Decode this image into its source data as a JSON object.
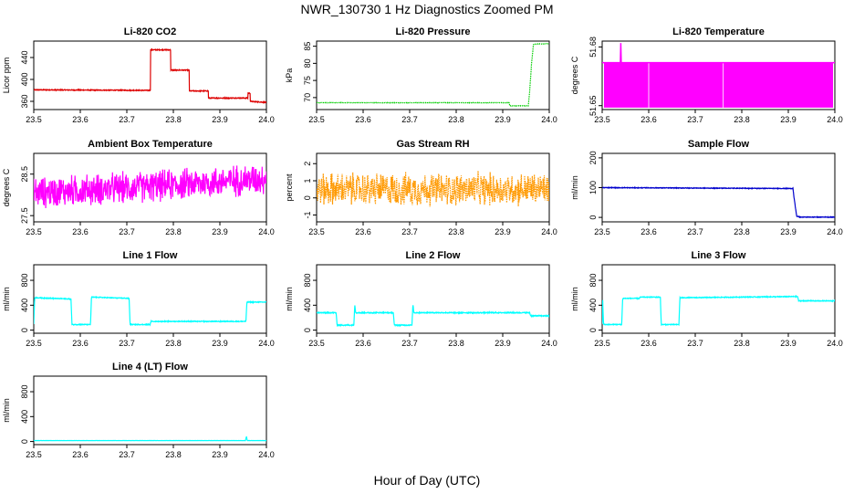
{
  "figure": {
    "title": "NWR_130730  1 Hz Diagnostics Zoomed PM",
    "xlabel": "Hour of Day (UTC)"
  },
  "chart_data": [
    {
      "type": "line",
      "title": "Li-820 CO2",
      "ylabel": "Licor ppm",
      "color": "#dd0000",
      "xlim": [
        23.5,
        24.0
      ],
      "ylim": [
        345,
        470
      ],
      "xticks": [
        23.5,
        23.6,
        23.7,
        23.8,
        23.9,
        24.0
      ],
      "xtick_labels": [
        "23.5",
        "23.6",
        "23.7",
        "23.8",
        "23.9",
        "24.0"
      ],
      "yticks": [
        360,
        400,
        440
      ],
      "ytick_labels": [
        "360",
        "400",
        "440"
      ],
      "style": "steps",
      "noise": 1.5,
      "series": [
        {
          "x": [
            23.5,
            23.751,
            23.751,
            23.794,
            23.794,
            23.834,
            23.834,
            23.875,
            23.875,
            23.96,
            23.96,
            23.965,
            23.965,
            24.0
          ],
          "y": [
            381,
            380,
            454,
            454,
            417,
            417,
            379,
            379,
            366,
            366,
            375,
            375,
            360,
            358
          ]
        }
      ]
    },
    {
      "type": "line",
      "title": "Li-820 Pressure",
      "ylabel": "kPa",
      "color": "#00cc00",
      "xlim": [
        23.5,
        24.0
      ],
      "ylim": [
        66.5,
        86.5
      ],
      "xticks": [
        23.5,
        23.6,
        23.7,
        23.8,
        23.9,
        24.0
      ],
      "xtick_labels": [
        "23.5",
        "23.6",
        "23.7",
        "23.8",
        "23.9",
        "24.0"
      ],
      "yticks": [
        70,
        75,
        80,
        85
      ],
      "ytick_labels": [
        "70",
        "75",
        "80",
        "85"
      ],
      "style": "dotted",
      "noise": 0.1,
      "series": [
        {
          "x": [
            23.5,
            23.914,
            23.915,
            23.955,
            23.958,
            23.962,
            23.966,
            23.975,
            24.0
          ],
          "y": [
            68.5,
            68.5,
            67.6,
            67.6,
            72,
            80,
            85.5,
            85.7,
            85.7
          ]
        }
      ]
    },
    {
      "type": "line",
      "title": "Li-820 Temperature",
      "ylabel": "degrees C",
      "color": "#ff00ff",
      "xlim": [
        23.5,
        24.0
      ],
      "ylim": [
        51.648,
        51.683
      ],
      "xticks": [
        23.5,
        23.6,
        23.7,
        23.8,
        23.9,
        24.0
      ],
      "xtick_labels": [
        "23.5",
        "23.6",
        "23.7",
        "23.8",
        "23.9",
        "24.0"
      ],
      "yticks": [
        51.65,
        51.68
      ],
      "ytick_labels": [
        "51.65",
        "51.68"
      ],
      "style": "band",
      "band": [
        51.649,
        51.672
      ],
      "series": [
        {
          "x": [
            23.5,
            23.539,
            23.54,
            23.541,
            24.0
          ],
          "y": [
            51.672,
            51.672,
            51.682,
            51.672,
            51.672
          ]
        }
      ]
    },
    {
      "type": "line",
      "title": "Ambient Box Temperature",
      "ylabel": "degrees C",
      "color": "#ff00ff",
      "xlim": [
        23.5,
        24.0
      ],
      "ylim": [
        27.35,
        29.0
      ],
      "xticks": [
        23.5,
        23.6,
        23.7,
        23.8,
        23.9,
        24.0
      ],
      "xtick_labels": [
        "23.5",
        "23.6",
        "23.7",
        "23.8",
        "23.9",
        "24.0"
      ],
      "yticks": [
        27.5,
        28.5
      ],
      "ytick_labels": [
        "27.5",
        "28.5"
      ],
      "style": "noisy",
      "noise": 0.55,
      "series": [
        {
          "x": [
            23.5,
            23.75,
            24.0
          ],
          "y": [
            28.05,
            28.2,
            28.4
          ]
        }
      ]
    },
    {
      "type": "line",
      "title": "Gas Stream RH",
      "ylabel": "percent",
      "color": "#ff9900",
      "xlim": [
        23.5,
        24.0
      ],
      "ylim": [
        -1.4,
        2.6
      ],
      "xticks": [
        23.5,
        23.6,
        23.7,
        23.8,
        23.9,
        24.0
      ],
      "xtick_labels": [
        "23.5",
        "23.6",
        "23.7",
        "23.8",
        "23.9",
        "24.0"
      ],
      "yticks": [
        -1,
        0,
        1,
        2
      ],
      "ytick_labels": [
        "-1",
        "0",
        "1",
        "2"
      ],
      "style": "noisy-dotted",
      "noise": 1.4,
      "series": [
        {
          "x": [
            23.5,
            24.0
          ],
          "y": [
            0.5,
            0.5
          ]
        }
      ]
    },
    {
      "type": "line",
      "title": "Sample Flow",
      "ylabel": "ml/min",
      "color": "#0000cc",
      "xlim": [
        23.5,
        24.0
      ],
      "ylim": [
        -15,
        215
      ],
      "xticks": [
        23.5,
        23.6,
        23.7,
        23.8,
        23.9,
        24.0
      ],
      "xtick_labels": [
        "23.5",
        "23.6",
        "23.7",
        "23.8",
        "23.9",
        "24.0"
      ],
      "yticks": [
        0,
        100,
        200
      ],
      "ytick_labels": [
        "0",
        "100",
        "200"
      ],
      "style": "steps",
      "noise": 2,
      "series": [
        {
          "x": [
            23.5,
            23.91,
            23.912,
            23.918,
            23.925,
            24.0
          ],
          "y": [
            100,
            97,
            70,
            4,
            1,
            1
          ]
        }
      ]
    },
    {
      "type": "line",
      "title": "Line 1 Flow",
      "ylabel": "ml/min",
      "color": "#00ffff",
      "xlim": [
        23.5,
        24.0
      ],
      "ylim": [
        -50,
        1050
      ],
      "xticks": [
        23.5,
        23.6,
        23.7,
        23.8,
        23.9,
        24.0
      ],
      "xtick_labels": [
        "23.5",
        "23.6",
        "23.7",
        "23.8",
        "23.9",
        "24.0"
      ],
      "yticks": [
        0,
        400,
        800
      ],
      "ytick_labels": [
        "0",
        "400",
        "800"
      ],
      "style": "steps",
      "noise": 12,
      "series": [
        {
          "x": [
            23.5,
            23.502,
            23.504,
            23.58,
            23.582,
            23.622,
            23.624,
            23.705,
            23.707,
            23.75,
            23.752,
            23.956,
            23.958,
            24.0
          ],
          "y": [
            100,
            520,
            520,
            500,
            90,
            90,
            530,
            510,
            90,
            90,
            140,
            140,
            450,
            450
          ]
        }
      ]
    },
    {
      "type": "line",
      "title": "Line 2 Flow",
      "ylabel": "ml/min",
      "color": "#00ffff",
      "xlim": [
        23.5,
        24.0
      ],
      "ylim": [
        -50,
        1050
      ],
      "xticks": [
        23.5,
        23.6,
        23.7,
        23.8,
        23.9,
        24.0
      ],
      "xtick_labels": [
        "23.5",
        "23.6",
        "23.7",
        "23.8",
        "23.9",
        "24.0"
      ],
      "yticks": [
        0,
        400,
        800
      ],
      "ytick_labels": [
        "0",
        "400",
        "800"
      ],
      "style": "steps",
      "noise": 15,
      "series": [
        {
          "x": [
            23.5,
            23.542,
            23.544,
            23.58,
            23.582,
            23.584,
            23.665,
            23.667,
            23.705,
            23.707,
            23.709,
            23.958,
            23.96,
            24.0
          ],
          "y": [
            280,
            280,
            80,
            80,
            420,
            280,
            280,
            80,
            80,
            420,
            280,
            280,
            230,
            230
          ]
        }
      ]
    },
    {
      "type": "line",
      "title": "Line 3 Flow",
      "ylabel": "ml/min",
      "color": "#00ffff",
      "xlim": [
        23.5,
        24.0
      ],
      "ylim": [
        -50,
        1050
      ],
      "xticks": [
        23.5,
        23.6,
        23.7,
        23.8,
        23.9,
        24.0
      ],
      "xtick_labels": [
        "23.5",
        "23.6",
        "23.7",
        "23.8",
        "23.9",
        "24.0"
      ],
      "yticks": [
        0,
        400,
        800
      ],
      "ytick_labels": [
        "0",
        "400",
        "800"
      ],
      "style": "steps",
      "noise": 12,
      "series": [
        {
          "x": [
            23.5,
            23.501,
            23.503,
            23.542,
            23.544,
            23.58,
            23.582,
            23.625,
            23.627,
            23.665,
            23.667,
            23.92,
            23.922,
            24.0
          ],
          "y": [
            100,
            500,
            90,
            90,
            510,
            510,
            530,
            530,
            90,
            90,
            520,
            540,
            470,
            470
          ]
        }
      ]
    },
    {
      "type": "line",
      "title": "Line 4 (LT) Flow",
      "ylabel": "ml/min",
      "color": "#00ffff",
      "xlim": [
        23.5,
        24.0
      ],
      "ylim": [
        -50,
        1050
      ],
      "xticks": [
        23.5,
        23.6,
        23.7,
        23.8,
        23.9,
        24.0
      ],
      "xtick_labels": [
        "23.5",
        "23.6",
        "23.7",
        "23.8",
        "23.9",
        "24.0"
      ],
      "yticks": [
        0,
        400,
        800
      ],
      "ytick_labels": [
        "0",
        "400",
        "800"
      ],
      "style": "steps",
      "noise": 2,
      "series": [
        {
          "x": [
            23.5,
            23.955,
            23.957,
            23.959,
            24.0
          ],
          "y": [
            15,
            15,
            80,
            15,
            15
          ]
        }
      ]
    }
  ]
}
